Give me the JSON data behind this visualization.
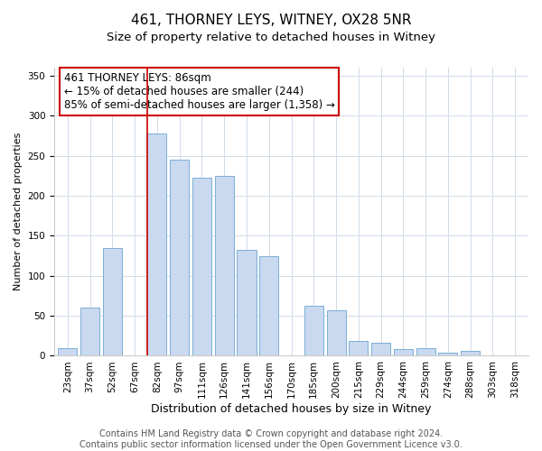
{
  "title": "461, THORNEY LEYS, WITNEY, OX28 5NR",
  "subtitle": "Size of property relative to detached houses in Witney",
  "xlabel": "Distribution of detached houses by size in Witney",
  "ylabel": "Number of detached properties",
  "categories": [
    "23sqm",
    "37sqm",
    "52sqm",
    "67sqm",
    "82sqm",
    "97sqm",
    "111sqm",
    "126sqm",
    "141sqm",
    "156sqm",
    "170sqm",
    "185sqm",
    "200sqm",
    "215sqm",
    "229sqm",
    "244sqm",
    "259sqm",
    "274sqm",
    "288sqm",
    "303sqm",
    "318sqm"
  ],
  "values": [
    10,
    60,
    135,
    0,
    278,
    245,
    223,
    225,
    132,
    125,
    0,
    63,
    57,
    19,
    16,
    8,
    9,
    4,
    6,
    0,
    0
  ],
  "bar_color": "#c8d9f0",
  "bar_edgecolor": "#7bafd4",
  "vline_color": "#cc0000",
  "vline_index": 4,
  "annotation_line1": "461 THORNEY LEYS: 86sqm",
  "annotation_line2": "← 15% of detached houses are smaller (244)",
  "annotation_line3": "85% of semi-detached houses are larger (1,358) →",
  "annotation_box_edgecolor": "#cc0000",
  "annotation_box_facecolor": "#ffffff",
  "ylim": [
    0,
    360
  ],
  "yticks": [
    0,
    50,
    100,
    150,
    200,
    250,
    300,
    350
  ],
  "footer1": "Contains HM Land Registry data © Crown copyright and database right 2024.",
  "footer2": "Contains public sector information licensed under the Open Government Licence v3.0.",
  "title_fontsize": 11,
  "subtitle_fontsize": 9.5,
  "xlabel_fontsize": 9,
  "ylabel_fontsize": 8,
  "tick_fontsize": 7.5,
  "annotation_fontsize": 8.5,
  "footer_fontsize": 7,
  "background_color": "#ffffff",
  "grid_color": "#d0dce8"
}
